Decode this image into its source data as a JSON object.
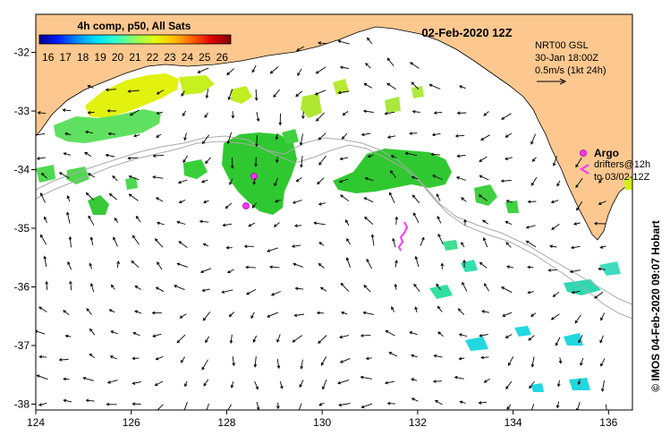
{
  "header": {
    "colorbar_title": "4h comp, p50, All Sats",
    "date": "02-Feb-2020 12Z"
  },
  "colorbar": {
    "ticks": [
      "16",
      "17",
      "18",
      "19",
      "20",
      "21",
      "22",
      "23",
      "24",
      "25",
      "26"
    ],
    "min": 15.5,
    "max": 26.5,
    "colors": [
      "#00008f",
      "#0020ff",
      "#0090ff",
      "#00e0ff",
      "#30ffc8",
      "#90ff60",
      "#e0ff10",
      "#ffc000",
      "#ff6000",
      "#e00000",
      "#800000"
    ]
  },
  "current_info": {
    "line1": "NRT00 GSL",
    "line2": "30-Jan 18:00Z",
    "line3": "0.5m/s (1kt 24h)"
  },
  "legend": {
    "argo_label": "Argo",
    "drifters_line1": "drifters@12h",
    "drifters_line2": "to 03/02-12Z"
  },
  "credit": "© IMOS 04-Feb-2020 09:07 Hobart",
  "axes": {
    "x_ticks": [
      "124",
      "126",
      "128",
      "130",
      "132",
      "134",
      "136"
    ],
    "y_ticks": [
      "-32",
      "-33",
      "-34",
      "-35",
      "-36",
      "-37",
      "-38"
    ],
    "lon_range": [
      124,
      136.5
    ],
    "lat_range": [
      -38.1,
      -31.35
    ]
  },
  "colors": {
    "land": "#fcc88f",
    "argo": "#ff33ff",
    "contour": "#aaaaaa"
  }
}
